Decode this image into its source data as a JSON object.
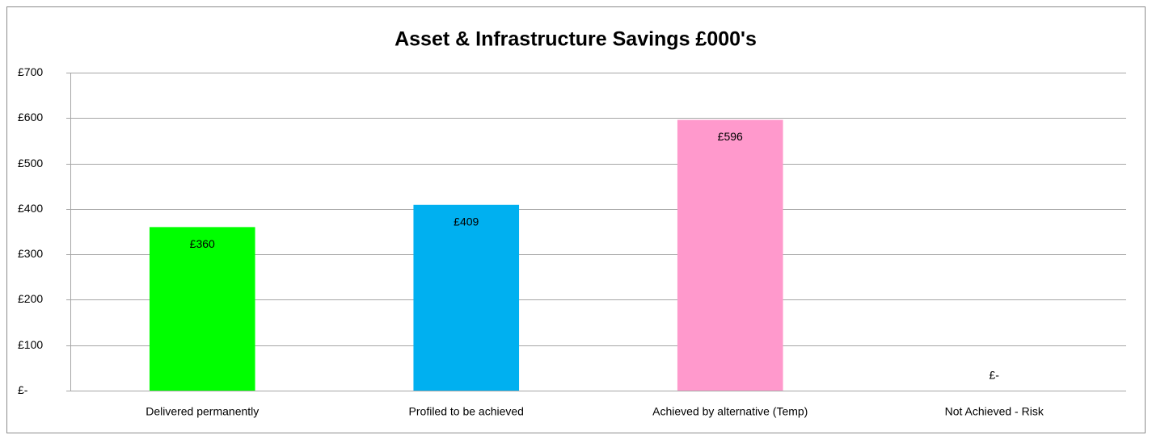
{
  "chart_data": {
    "type": "bar",
    "title": "Asset & Infrastructure Savings £000's",
    "categories": [
      "Delivered permanently",
      "Profiled to be achieved",
      "Achieved by alternative (Temp)",
      "Not Achieved - Risk"
    ],
    "values": [
      360,
      409,
      596,
      0
    ],
    "value_labels": [
      "£360",
      "£409",
      "£596",
      "£-"
    ],
    "colors": [
      "#00ff00",
      "#00b0f0",
      "#ff99cc",
      "#ff0000"
    ],
    "ylim": [
      0,
      700
    ],
    "yticks": [
      {
        "value": 0,
        "label": "£-"
      },
      {
        "value": 100,
        "label": "£100"
      },
      {
        "value": 200,
        "label": "£200"
      },
      {
        "value": 300,
        "label": "£300"
      },
      {
        "value": 400,
        "label": "£400"
      },
      {
        "value": 500,
        "label": "£500"
      },
      {
        "value": 600,
        "label": "£600"
      },
      {
        "value": 700,
        "label": "£700"
      }
    ],
    "grid": true
  }
}
